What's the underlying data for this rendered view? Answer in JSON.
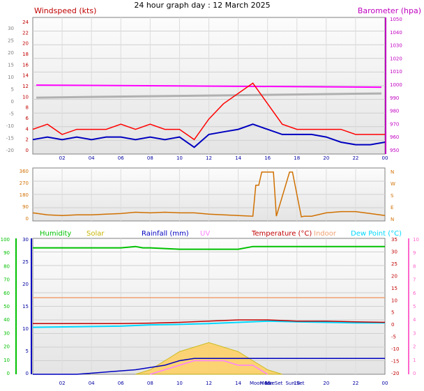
{
  "title": "24 hour graph day : 12 March 2025",
  "colors": {
    "windspeed": "#ff0000",
    "windavg": "#0000c0",
    "barometer": "#ff00ff",
    "baro_line": "#b0b0b0",
    "direction": "#d07000",
    "humidity": "#00c000",
    "solar": "#c8b400",
    "rainfall": "#0000c0",
    "uv": "#ff80ff",
    "temperature": "#c00000",
    "indoor": "#f0a070",
    "dewpoint": "#00d8ff"
  },
  "chart_data": [
    {
      "type": "line",
      "labels": {
        "left": "Windspeed (kts)",
        "right": "Barometer (hpa)"
      },
      "x_ticks": [
        "02",
        "04",
        "06",
        "08",
        "10",
        "12",
        "14",
        "16",
        "18",
        "20",
        "22",
        "00"
      ],
      "left_ticks_outer": [
        "30",
        "25",
        "20",
        "15",
        "10",
        "5",
        "0",
        "-5",
        "-10",
        "-15",
        "-20"
      ],
      "left_ticks_inner": [
        "24",
        "22",
        "20",
        "18",
        "16",
        "14",
        "12",
        "10",
        "8",
        "6",
        "4",
        "2",
        "0"
      ],
      "right_ticks": [
        "1050",
        "1040",
        "1030",
        "1020",
        "1010",
        "1000",
        "990",
        "980",
        "970",
        "960",
        "950"
      ],
      "wind_ylim": [
        0,
        25
      ],
      "baro_ylim": [
        945,
        1050
      ],
      "pressure_value": 998,
      "series": [
        {
          "key": "gust",
          "x": [
            0,
            1,
            2,
            3,
            4,
            5,
            6,
            7,
            8,
            9,
            10,
            11,
            12,
            13,
            14,
            15,
            16,
            17,
            18,
            19,
            20,
            21,
            22,
            23,
            24
          ],
          "values": [
            4,
            5,
            3,
            4,
            4,
            4,
            5,
            4,
            5,
            4,
            4,
            2,
            6,
            9,
            11,
            13,
            9,
            5,
            4,
            4,
            4,
            4,
            3,
            3,
            3
          ]
        },
        {
          "key": "average",
          "x": [
            0,
            1,
            2,
            3,
            4,
            5,
            6,
            7,
            8,
            9,
            10,
            11,
            12,
            13,
            14,
            15,
            16,
            17,
            18,
            19,
            20,
            21,
            22,
            23,
            24
          ],
          "values": [
            2,
            2.5,
            2,
            2.5,
            2,
            2.5,
            2.5,
            2,
            2.5,
            2,
            2.5,
            0.5,
            3,
            3.5,
            4,
            5,
            4,
            3,
            3,
            3,
            2.5,
            1.5,
            1,
            1,
            1.5
          ]
        }
      ]
    },
    {
      "type": "line",
      "y_ticks": [
        "360",
        "270",
        "180",
        "90",
        "0"
      ],
      "compass": [
        "N",
        "W",
        "S",
        "E",
        "N"
      ],
      "x_ticks": [],
      "ylim": [
        0,
        360
      ],
      "series": [
        {
          "key": "wind_direction",
          "x": [
            0,
            1,
            2,
            3,
            4,
            5,
            6,
            7,
            8,
            9,
            10,
            11,
            12,
            13,
            14,
            15,
            15.2,
            15.4,
            15.6,
            16.4,
            16.6,
            17.5,
            17.7,
            18.3,
            18.5,
            19,
            20,
            21,
            22,
            23,
            24
          ],
          "values": [
            40,
            25,
            20,
            25,
            25,
            30,
            35,
            45,
            40,
            45,
            40,
            40,
            30,
            25,
            20,
            15,
            250,
            250,
            350,
            350,
            15,
            350,
            350,
            10,
            15,
            15,
            40,
            50,
            50,
            35,
            20
          ]
        }
      ]
    },
    {
      "type": "line",
      "legend": [
        "Humidity",
        "Solar",
        "Rainfall (mm)",
        "UV",
        "Temperature (°C)",
        "Indoor",
        "Dew Point (°C)"
      ],
      "x_ticks": [
        "02",
        "04",
        "06",
        "08",
        "10",
        "12",
        "14",
        "16",
        "18",
        "20",
        "22",
        "00"
      ],
      "x_annotations": [
        "Moon Rise",
        "Moon Set",
        "Sun Set"
      ],
      "left_ticks_outer": [
        "100",
        "90",
        "80",
        "70",
        "60",
        "50",
        "40",
        "30",
        "20",
        "10",
        "0"
      ],
      "left_ticks_inner": [
        "30",
        "25",
        "20",
        "15",
        "10",
        "5",
        "0"
      ],
      "right_ticks_temp": [
        "35",
        "30",
        "25",
        "20",
        "15",
        "10",
        "5",
        "0",
        "-5",
        "-10",
        "-15",
        "-20"
      ],
      "right_ticks_uv": [
        "10",
        "9",
        "8",
        "7",
        "6",
        "5",
        "4",
        "3",
        "2",
        "1",
        "0"
      ],
      "temp_ylim": [
        -20,
        35
      ],
      "series": [
        {
          "key": "humidity",
          "x": [
            0,
            6,
            7,
            7.5,
            8,
            10,
            12,
            14,
            15,
            16,
            20,
            22,
            24
          ],
          "values": [
            93,
            93,
            94,
            93,
            93,
            92,
            92,
            92,
            94,
            94,
            94,
            94,
            94
          ]
        },
        {
          "key": "indoor_temp",
          "x": [
            0,
            24
          ],
          "values": [
            11,
            11
          ]
        },
        {
          "key": "temperature",
          "x": [
            0,
            6,
            8,
            10,
            12,
            14,
            16,
            18,
            20,
            22,
            24
          ],
          "values": [
            0.5,
            0.5,
            0.7,
            1,
            1.5,
            2,
            2,
            1.5,
            1.5,
            1.2,
            1
          ]
        },
        {
          "key": "dew_point",
          "x": [
            0,
            6,
            8,
            10,
            12,
            14,
            16,
            18,
            20,
            22,
            24
          ],
          "values": [
            -1,
            -0.5,
            0,
            0.2,
            0.5,
            1,
            1.5,
            1.2,
            1,
            0.8,
            0.8
          ]
        },
        {
          "key": "rainfall",
          "x": [
            0,
            3,
            5,
            7,
            9,
            10,
            11,
            24
          ],
          "values": [
            0,
            0,
            0.5,
            1,
            2,
            3,
            3.5,
            3.5
          ]
        },
        {
          "key": "solar",
          "x": [
            7,
            8,
            9,
            10,
            11,
            12,
            13,
            14,
            15,
            16,
            17
          ],
          "values": [
            0,
            1,
            3,
            5,
            6,
            7,
            6,
            5,
            3,
            1,
            0
          ]
        },
        {
          "key": "uv",
          "x": [
            8,
            9,
            10,
            11,
            12,
            13,
            14,
            15,
            16
          ],
          "values": [
            0,
            1,
            2,
            3,
            3,
            3,
            2,
            2,
            0
          ]
        }
      ]
    }
  ]
}
